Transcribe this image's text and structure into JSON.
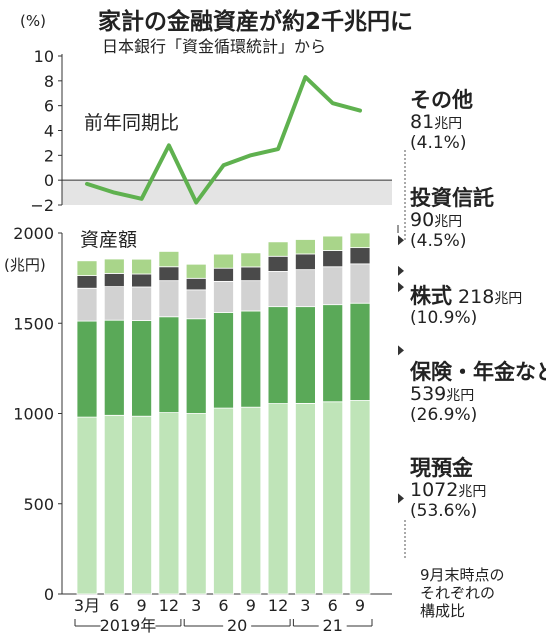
{
  "title": "家計の金融資産が約2千兆円に",
  "subtitle": "日本銀行「資金循環統計」から",
  "note_lines": [
    "9月末時点の",
    "それぞれの",
    "構成比"
  ],
  "colors": {
    "deposits": "#bfe4b8",
    "insurance": "#5aa958",
    "stocks": "#d2d2d2",
    "trusts": "#4a4a4a",
    "other": "#a9d58a",
    "line": "#5fb14f",
    "neg_band": "#e4e4e4"
  },
  "chart_data": [
    {
      "type": "line",
      "title": "前年同期比",
      "y_unit": "(%)",
      "ylim": [
        -2,
        10
      ],
      "yticks": [
        "10",
        "8",
        "6",
        "4",
        "2",
        "0",
        "−2"
      ],
      "x": [
        "2019-03",
        "2019-06",
        "2019-09",
        "2019-12",
        "2020-03",
        "2020-06",
        "2020-09",
        "2020-12",
        "2021-03",
        "2021-06",
        "2021-09"
      ],
      "values": [
        -0.3,
        -1.0,
        -1.5,
        2.8,
        -1.8,
        1.2,
        2.0,
        2.5,
        8.3,
        6.2,
        5.6
      ]
    },
    {
      "type": "bar",
      "stacked": true,
      "title": "資産額",
      "y_unit": "(兆円)",
      "ylim": [
        0,
        2000
      ],
      "yticks": [
        "2000",
        "1500",
        "1000",
        "500",
        "0"
      ],
      "categories": [
        "3月",
        "6",
        "9",
        "12",
        "3",
        "6",
        "9",
        "12",
        "3",
        "6",
        "9"
      ],
      "year_labels": [
        "2019年",
        "20",
        "21"
      ],
      "series": [
        {
          "name": "現預金",
          "values": [
            980,
            990,
            985,
            1005,
            1000,
            1030,
            1035,
            1055,
            1056,
            1065,
            1072
          ]
        },
        {
          "name": "保険・年金など",
          "values": [
            532,
            527,
            530,
            531,
            525,
            530,
            533,
            537,
            536,
            538,
            539
          ]
        },
        {
          "name": "株式",
          "values": [
            182,
            186,
            186,
            200,
            160,
            172,
            168,
            195,
            205,
            210,
            218
          ]
        },
        {
          "name": "投資信託",
          "values": [
            70,
            73,
            72,
            77,
            64,
            73,
            76,
            84,
            87,
            90,
            90
          ]
        },
        {
          "name": "その他",
          "values": [
            82,
            80,
            82,
            85,
            78,
            78,
            78,
            80,
            80,
            80,
            81
          ]
        }
      ]
    }
  ],
  "legend": [
    {
      "name": "その他",
      "amount": "81",
      "unit": "兆円",
      "share": "(4.1%)"
    },
    {
      "name": "投資信託",
      "amount": "90",
      "unit": "兆円",
      "share": "(4.5%)"
    },
    {
      "name": "株式",
      "amount": "218",
      "unit": "兆円",
      "share": "(10.9%)"
    },
    {
      "name": "保険・年金など",
      "amount": "539",
      "unit": "兆円",
      "share": "(26.9%)"
    },
    {
      "name": "現預金",
      "amount": "1072",
      "unit": "兆円",
      "share": "(53.6%)"
    }
  ]
}
